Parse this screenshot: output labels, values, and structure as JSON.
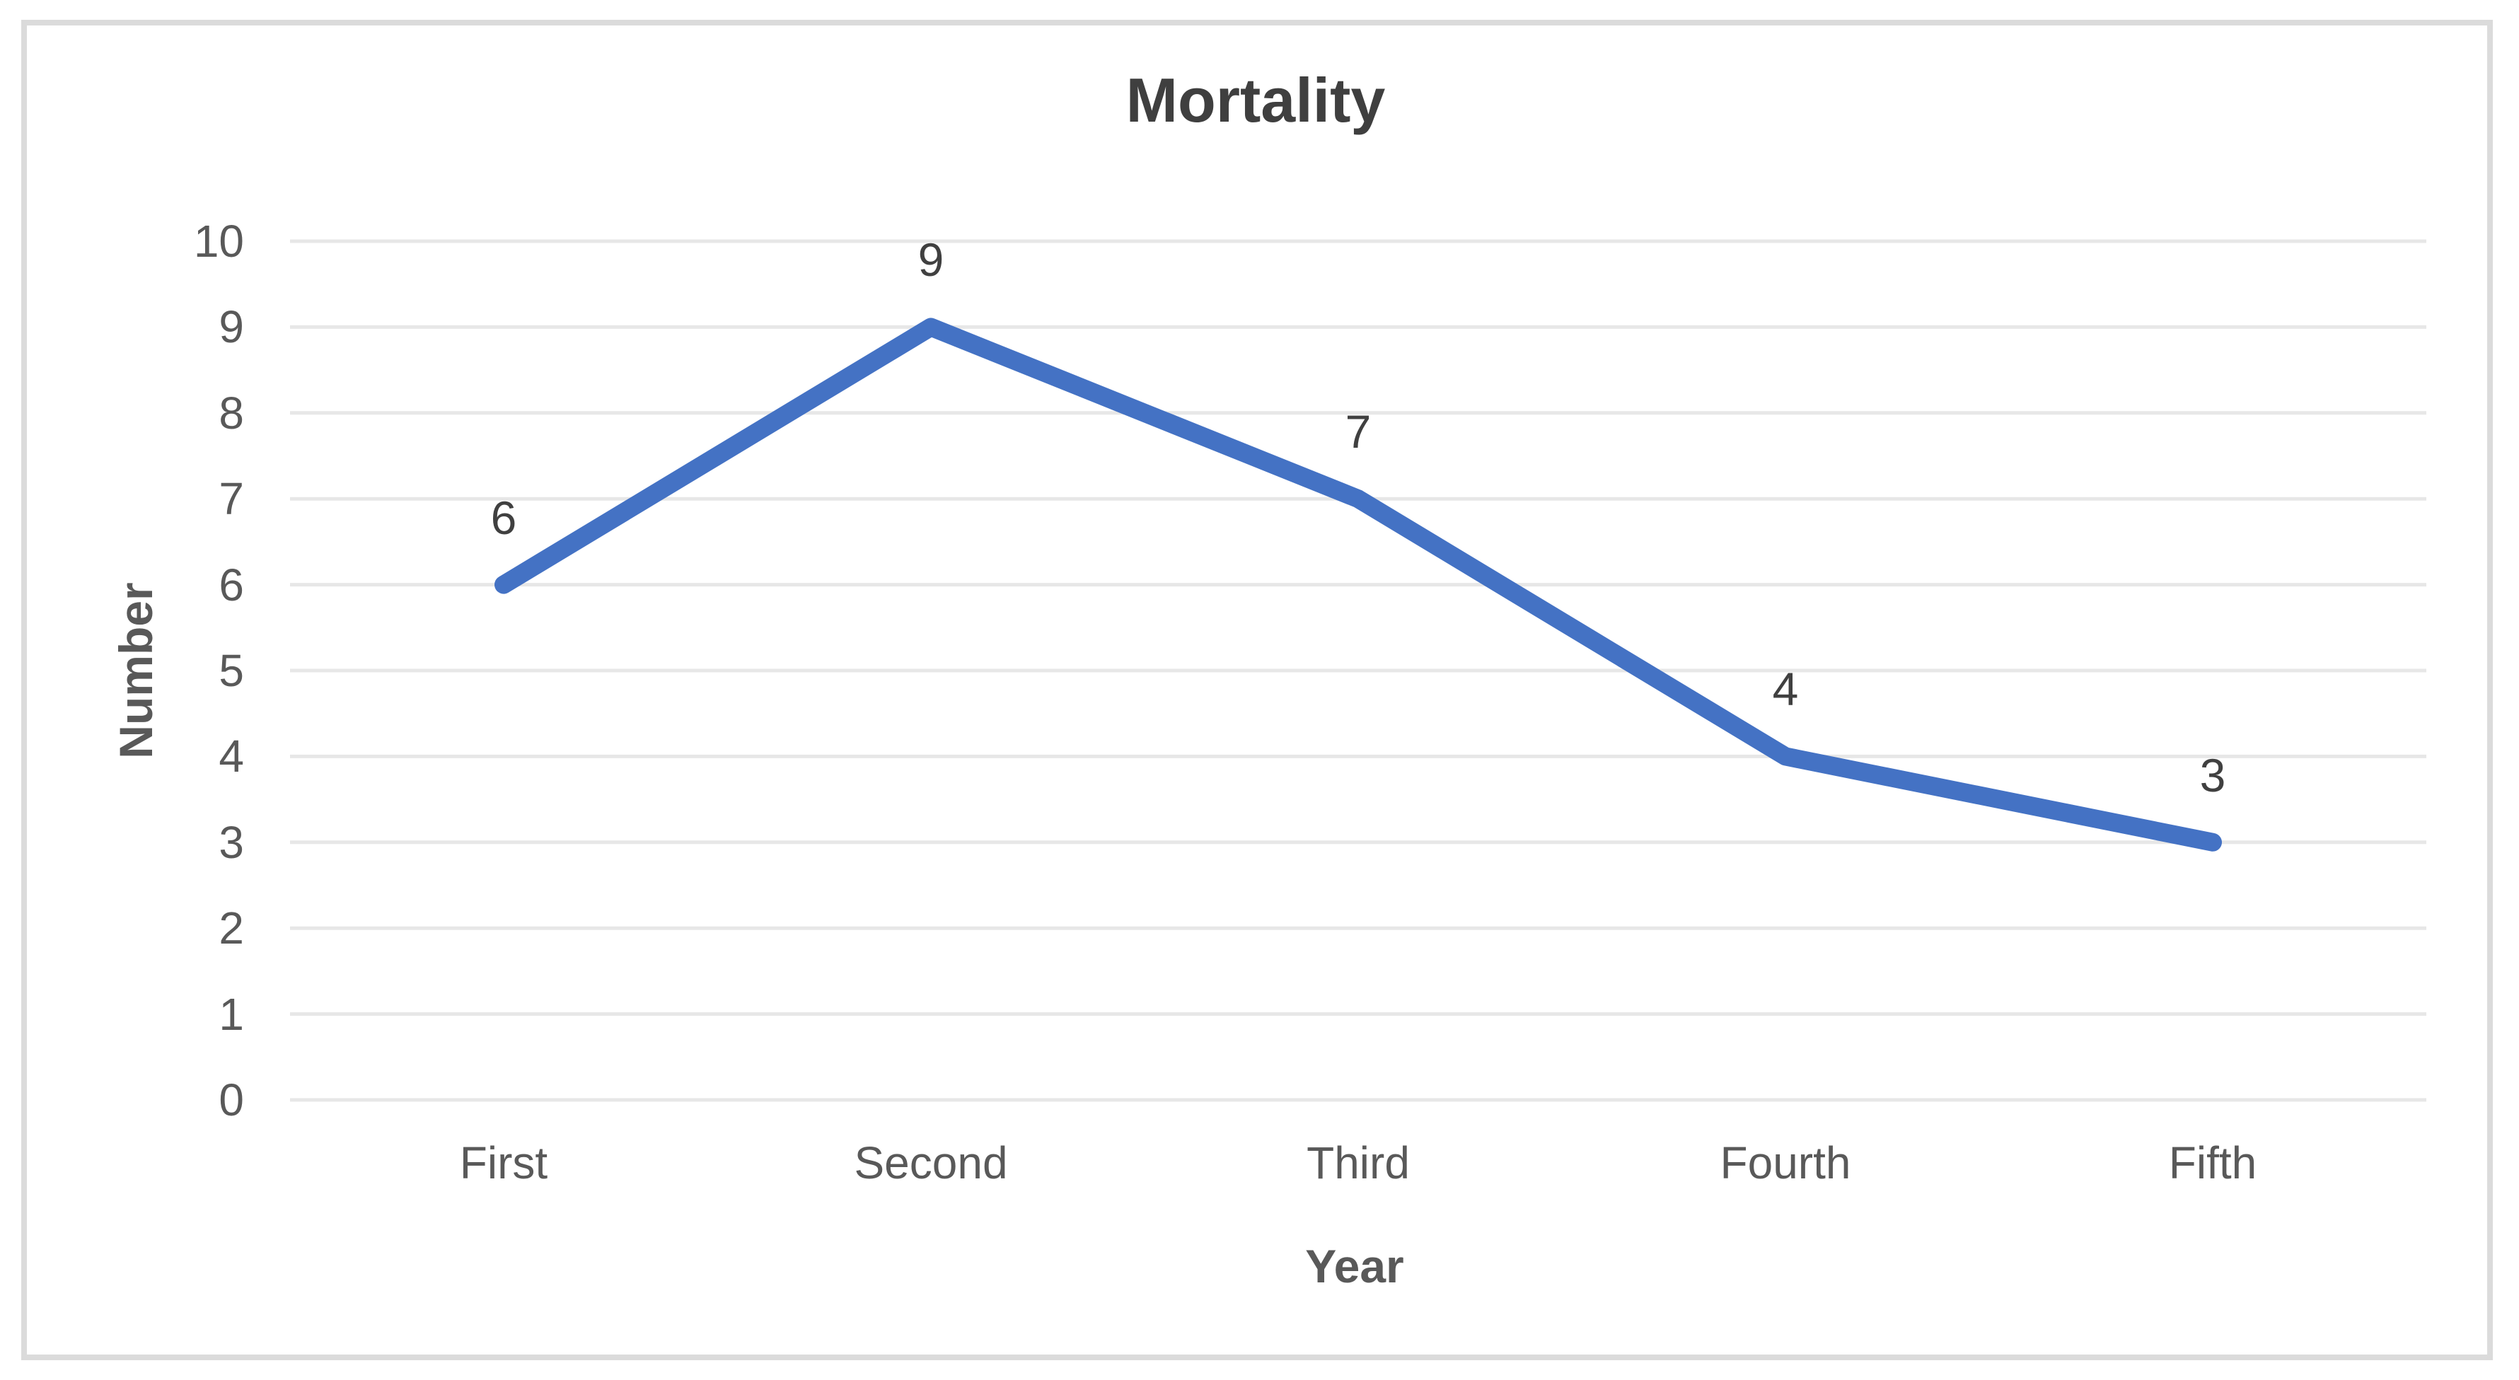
{
  "chart_data": {
    "type": "line",
    "title": "Mortality",
    "xlabel": "Year",
    "ylabel": "Number",
    "categories": [
      "First",
      "Second",
      "Third",
      "Fourth",
      "Fifth"
    ],
    "series": [
      {
        "name": "Mortality",
        "values": [
          6,
          9,
          7,
          4,
          3
        ]
      }
    ],
    "y_ticks": [
      0,
      1,
      2,
      3,
      4,
      5,
      6,
      7,
      8,
      9,
      10
    ],
    "ylim": [
      0,
      10
    ],
    "grid": "horizontal-major",
    "legend_position": "none",
    "data_label_position": "above",
    "colors": {
      "line": "#4472C4",
      "gridline": "#E7E7E7",
      "frame_border": "#DBDBDB",
      "title_text": "#3F3F3F",
      "axis_text": "#595959",
      "data_label_text": "#404040",
      "background": "#FFFFFF"
    }
  }
}
